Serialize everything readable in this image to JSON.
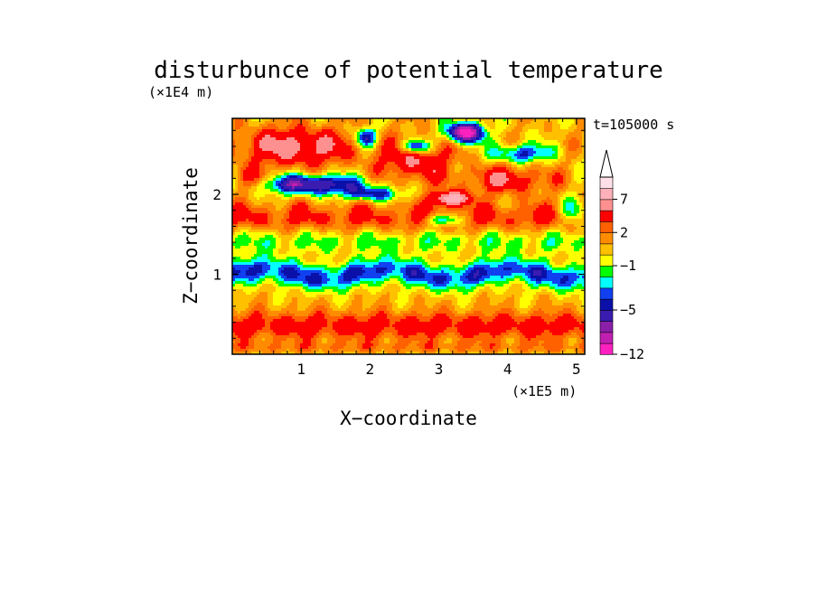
{
  "chart_data": {
    "type": "heatmap",
    "title": "disturbunce of potential temperature",
    "time_label": "t=105000 s",
    "xlabel": "X−coordinate",
    "ylabel": "Z−coordinate",
    "x_unit": "(×1E5 m)",
    "y_unit": "(×1E4 m)",
    "xlim": [
      0,
      5.12
    ],
    "ylim": [
      0,
      2.95
    ],
    "xticks": [
      1,
      2,
      3,
      4,
      5
    ],
    "yticks": [
      1,
      2
    ],
    "grid": false,
    "colorbar": {
      "levels": [
        -12,
        -10,
        -8,
        -7,
        -5,
        -4,
        -3,
        -2,
        -1,
        0,
        1,
        2,
        3,
        5,
        7,
        9,
        11,
        13
      ],
      "ticks": [
        7,
        2,
        -1,
        -5,
        -12
      ],
      "tick_labels": [
        "7",
        "2",
        "−1",
        "−5",
        "−12"
      ],
      "colors": [
        "#ff20c0",
        "#c020b0",
        "#8b1fa8",
        "#3a1cb0",
        "#0a10a8",
        "#1040f0",
        "#00ffff",
        "#00ff00",
        "#ffff00",
        "#ffc000",
        "#ff8c00",
        "#ff6000",
        "#ff0000",
        "#ff9090",
        "#ffb0b8",
        "#ffe0e8"
      ],
      "extend": "max"
    },
    "field_description": "banded temperature disturbance field"
  }
}
